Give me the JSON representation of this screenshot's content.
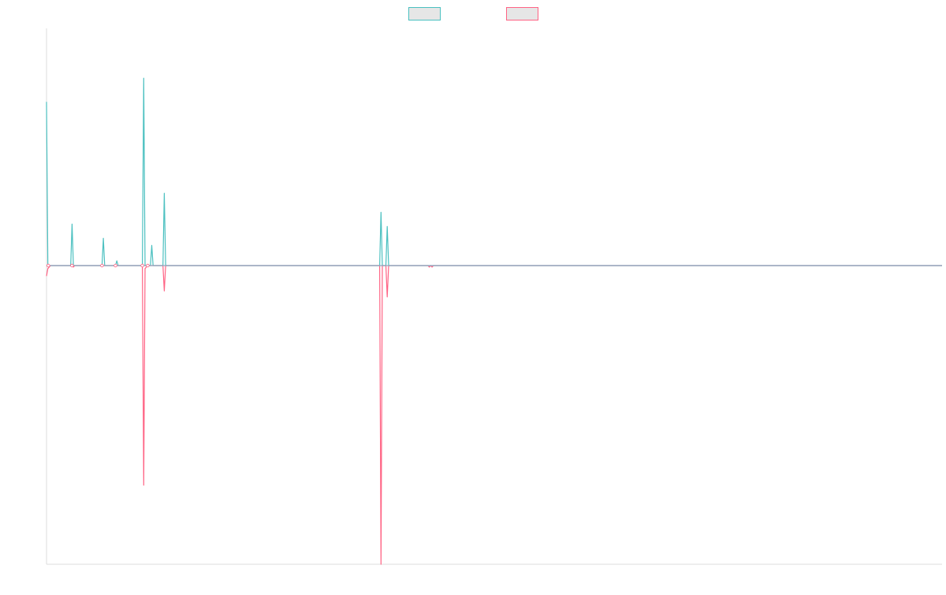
{
  "chart_data": {
    "type": "line",
    "title": "",
    "xlabel": "",
    "ylabel": "",
    "grid": false,
    "legend_position": "top-center",
    "xlim": [
      0,
      1000
    ],
    "ylim": [
      -100,
      100
    ],
    "x": [
      0,
      1.5,
      3,
      4.5,
      6,
      7,
      27,
      28.5,
      30,
      31.5,
      33,
      62,
      63.5,
      65,
      66.5,
      68,
      77,
      78.5,
      80,
      81.5,
      83,
      107,
      108.5,
      110,
      111.5,
      113,
      116,
      117.5,
      119,
      120.5,
      122,
      130,
      131.5,
      133,
      134.5,
      136,
      372,
      373.5,
      375,
      376.5,
      379,
      380.5,
      382,
      383.5,
      385,
      426,
      427.5,
      429,
      430.5,
      432,
      1000
    ],
    "series": [
      {
        "name": "",
        "color": "#4bc0c0",
        "values": [
          69,
          0,
          0,
          0,
          0,
          0,
          0,
          17.5,
          0,
          0,
          0,
          0,
          11.5,
          0,
          0,
          0,
          0,
          2,
          0,
          0,
          0,
          0,
          79,
          0,
          0,
          0,
          0,
          8.5,
          0,
          0,
          0,
          0,
          30.5,
          0,
          0,
          0,
          0,
          22.5,
          0,
          0,
          0,
          16.5,
          0,
          0,
          0,
          0,
          0,
          0,
          0,
          0,
          0
        ]
      },
      {
        "name": "",
        "color": "#ff6384",
        "values": [
          -3.5,
          -1,
          -0.5,
          0,
          0,
          0,
          0,
          0,
          -0.5,
          0,
          0,
          0,
          0,
          0,
          0,
          0,
          0,
          0,
          0,
          0,
          0,
          0,
          -73.5,
          -1,
          -0.5,
          0,
          0,
          0,
          0,
          0,
          0,
          0,
          -8.5,
          0,
          0,
          0,
          0,
          -100,
          0,
          0,
          0,
          -10.5,
          0,
          0,
          0,
          0,
          -0.5,
          0,
          -0.5,
          0,
          0
        ]
      }
    ]
  },
  "colors": {
    "axis": "#dddddd",
    "zero_line": "#8fa8c0",
    "legend_fill": "#e6e6e6"
  }
}
